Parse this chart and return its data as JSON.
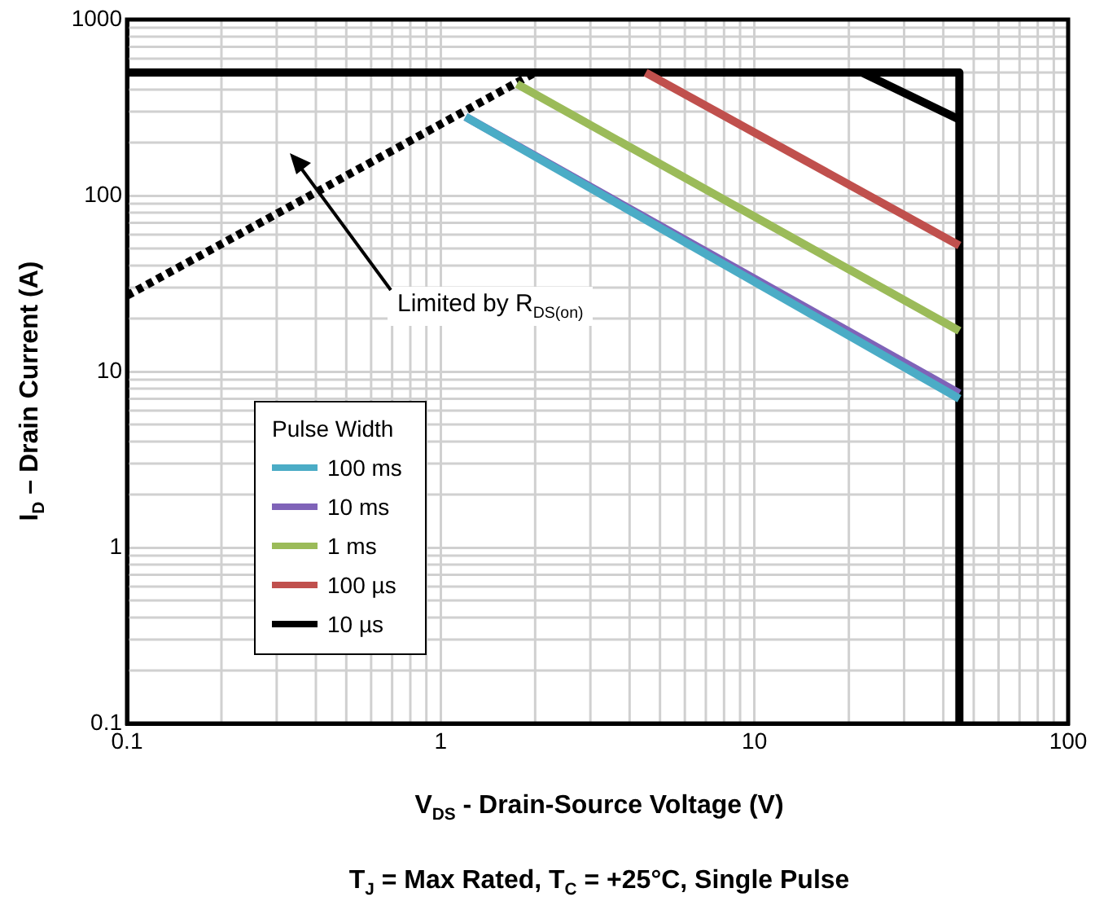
{
  "chart_data": {
    "type": "line",
    "xlabel": "V$_{DS}$  - Drain-Source Voltage (V)",
    "ylabel": "I$_{D}$ – Drain Current (A)",
    "legend_title": "Pulse Width",
    "legend": "bottom left",
    "log": "xy",
    "grid": true,
    "marker": "none",
    "xlim": [
      0.1,
      100
    ],
    "ylim": [
      0.1,
      1000
    ],
    "xticks": [
      0.1,
      1,
      10,
      100
    ],
    "yticks": [
      0.1,
      1,
      10,
      100,
      1000
    ],
    "series": [
      {
        "name": "100 ms",
        "color": "#4bacc6",
        "x": [
          1.2,
          45
        ],
        "values": [
          280,
          7
        ]
      },
      {
        "name": "10 ms",
        "color": "#7f63b8",
        "x": [
          1.2,
          45
        ],
        "values": [
          280,
          7.5
        ]
      },
      {
        "name": "1 ms",
        "color": "#9bbb59",
        "x": [
          1.75,
          45
        ],
        "values": [
          430,
          17
        ]
      },
      {
        "name": "100 µs",
        "color": "#c0504d",
        "x": [
          4.5,
          45
        ],
        "values": [
          500,
          52
        ]
      },
      {
        "name": "10 µs",
        "color": "#000000",
        "x": [
          0.1,
          22,
          45
        ],
        "values": [
          500,
          500,
          270
        ]
      },
      {
        "color": "#000000",
        "x": [
          22,
          45,
          45
        ],
        "values": [
          500,
          500,
          0.1
        ]
      },
      {
        "color": "#000000",
        "line_style": "dotted",
        "x": [
          0.1,
          2.0
        ],
        "values": [
          27,
          500
        ]
      }
    ],
    "annotations": [
      "Limited by R$_{DS(on)}$",
      "T$_{J}$ = Max Rated, T$_{C}$ = +25°C, Single Pulse"
    ]
  }
}
